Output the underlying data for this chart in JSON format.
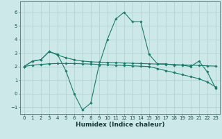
{
  "xlabel": "Humidex (Indice chaleur)",
  "background_color": "#cce8e8",
  "grid_color": "#aad0d0",
  "line_color": "#1a7a6a",
  "spine_color": "#557070",
  "xlim": [
    -0.5,
    23.5
  ],
  "ylim": [
    -1.5,
    6.8
  ],
  "yticks": [
    -1,
    0,
    1,
    2,
    3,
    4,
    5,
    6
  ],
  "xticks": [
    0,
    1,
    2,
    3,
    4,
    5,
    6,
    7,
    8,
    9,
    10,
    11,
    12,
    13,
    14,
    15,
    16,
    17,
    18,
    19,
    20,
    21,
    22,
    23
  ],
  "line1_x": [
    0,
    1,
    2,
    3,
    4,
    5,
    6,
    7,
    8,
    9,
    10,
    11,
    12,
    13,
    14,
    15,
    16,
    17,
    18,
    19,
    20,
    21,
    22,
    23
  ],
  "line1_y": [
    2.0,
    2.4,
    2.5,
    3.1,
    2.9,
    1.7,
    0.0,
    -1.2,
    -0.7,
    2.1,
    4.0,
    5.5,
    6.0,
    5.3,
    5.3,
    2.9,
    2.2,
    2.2,
    2.1,
    2.1,
    2.0,
    2.4,
    1.6,
    0.4
  ],
  "line2_x": [
    0,
    1,
    2,
    3,
    4,
    5,
    6,
    7,
    8,
    9,
    10,
    11,
    12,
    13,
    14,
    15,
    16,
    17,
    18,
    19,
    20,
    21,
    22,
    23
  ],
  "line2_y": [
    2.0,
    2.4,
    2.5,
    3.1,
    2.85,
    2.65,
    2.5,
    2.4,
    2.35,
    2.32,
    2.3,
    2.28,
    2.26,
    2.24,
    2.22,
    2.2,
    2.18,
    2.16,
    2.14,
    2.12,
    2.1,
    2.08,
    2.05,
    2.03
  ],
  "line3_x": [
    0,
    1,
    2,
    3,
    4,
    5,
    6,
    7,
    8,
    9,
    10,
    11,
    12,
    13,
    14,
    15,
    16,
    17,
    18,
    19,
    20,
    21,
    22,
    23
  ],
  "line3_y": [
    2.0,
    2.1,
    2.15,
    2.2,
    2.22,
    2.22,
    2.22,
    2.2,
    2.18,
    2.15,
    2.12,
    2.1,
    2.08,
    2.05,
    2.02,
    2.0,
    1.85,
    1.7,
    1.55,
    1.4,
    1.25,
    1.1,
    0.85,
    0.5
  ]
}
